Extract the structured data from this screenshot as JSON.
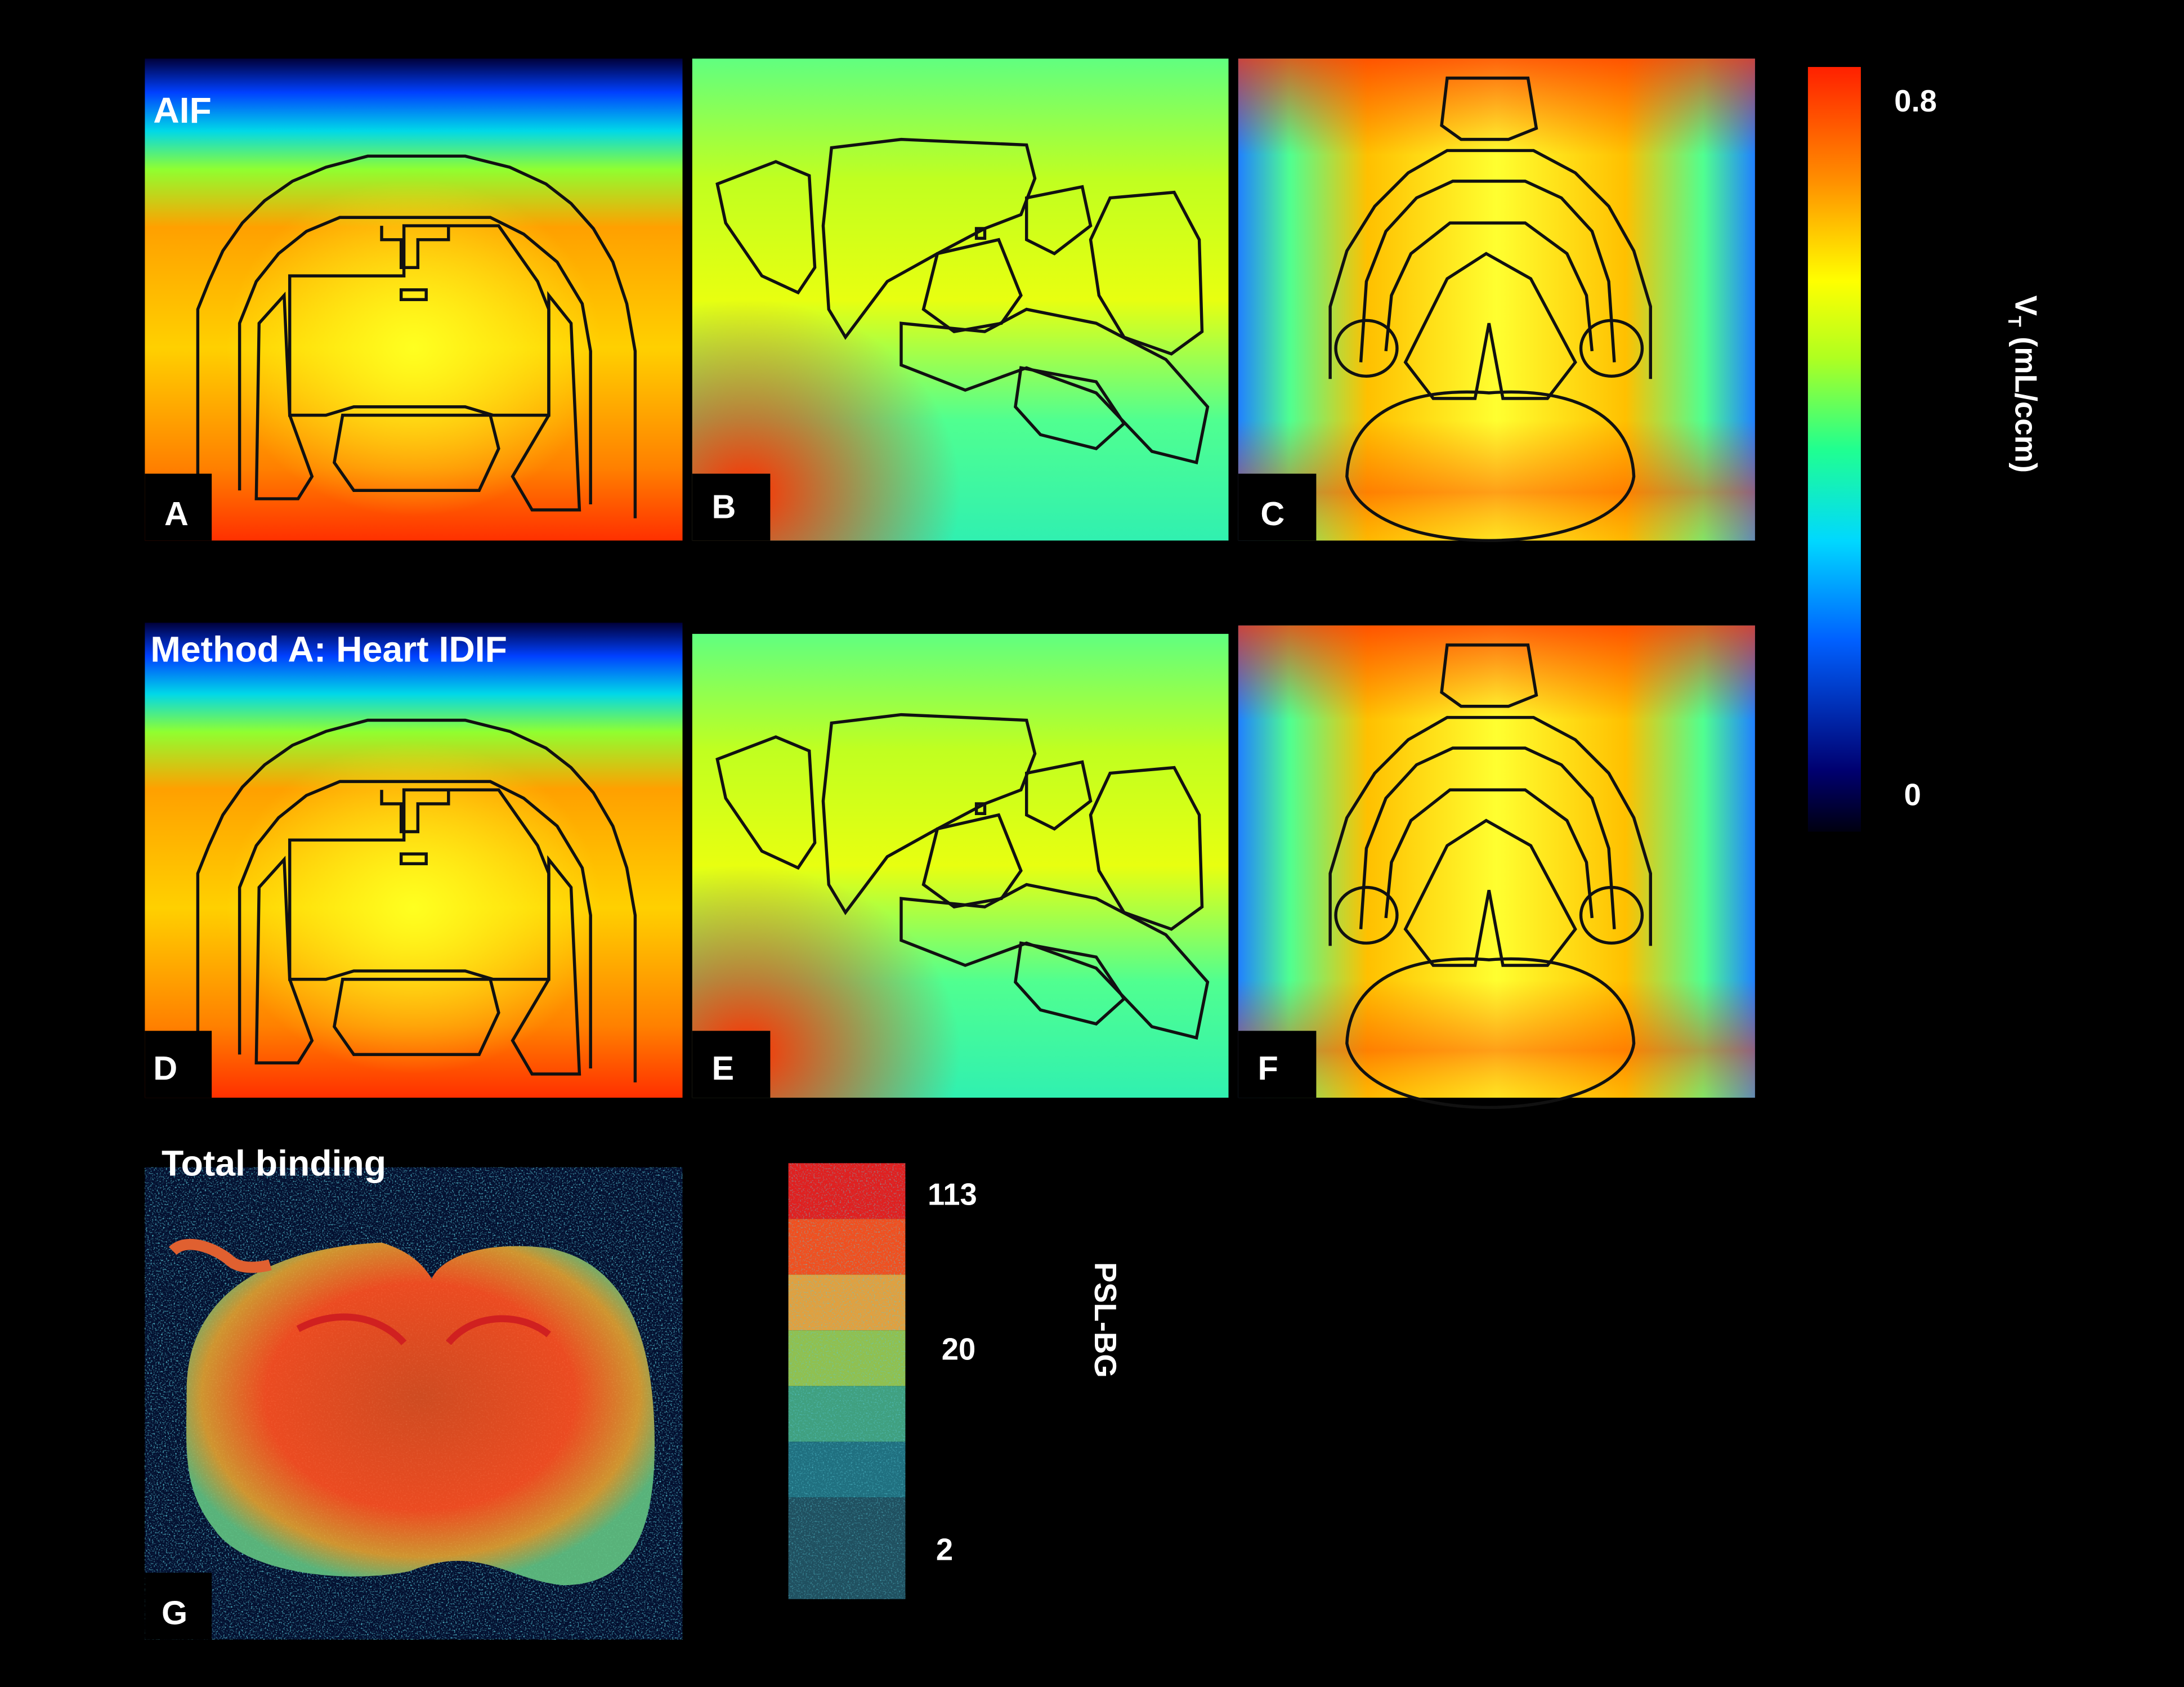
{
  "panels": [
    {
      "label": "A",
      "title": "AIF"
    },
    {
      "label": "B"
    },
    {
      "label": "C"
    },
    {
      "label": "D",
      "title": "Method A: Heart IDIF"
    },
    {
      "label": "E"
    },
    {
      "label": "F"
    },
    {
      "label": "G",
      "title": "Total binding"
    }
  ],
  "vt_colorbar": {
    "label": {
      "symbol": "V",
      "subscript": "T",
      "unit": "(mL/ccm)"
    },
    "ticks": [
      0.8,
      0
    ]
  },
  "psl_colorbar": {
    "label": "PSL-BG",
    "ticks": [
      113,
      20,
      2
    ]
  }
}
